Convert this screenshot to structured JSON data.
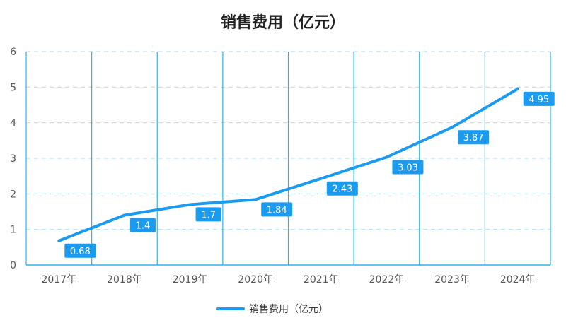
{
  "chart_data": {
    "type": "line",
    "title": "销售费用（亿元）",
    "categories": [
      "2017年",
      "2018年",
      "2019年",
      "2020年",
      "2021年",
      "2022年",
      "2023年",
      "2024年"
    ],
    "series": [
      {
        "name": "销售费用（亿元）",
        "values": [
          0.68,
          1.4,
          1.7,
          1.84,
          2.43,
          3.03,
          3.87,
          4.95
        ]
      }
    ],
    "ylim": [
      0,
      6
    ],
    "yticks": [
      "0",
      "1",
      "2",
      "3",
      "4",
      "5",
      "6"
    ],
    "grid": true,
    "legend_position": "bottom",
    "colors": {
      "series": "#1a9bef",
      "vgrid": "#29b6e6",
      "hgrid": "#a9dff3",
      "axis": "#29b6e6"
    }
  }
}
